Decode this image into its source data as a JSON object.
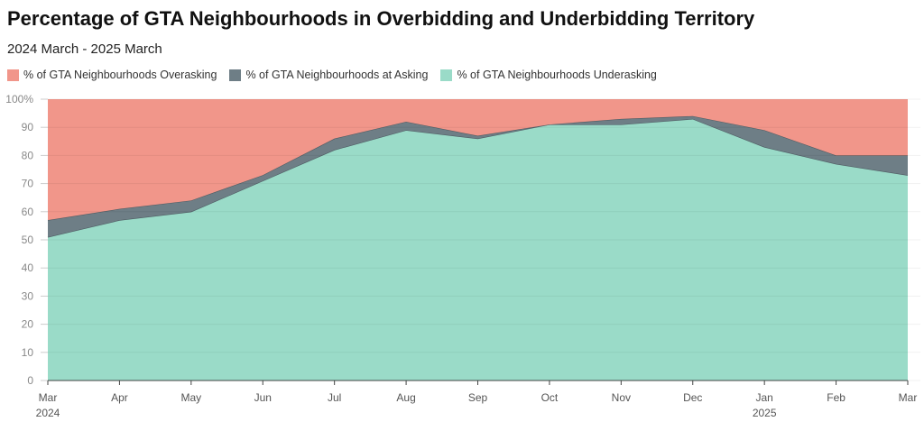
{
  "chart_data": {
    "type": "area",
    "stacked": true,
    "title": "Percentage of GTA Neighbourhoods in Overbidding and Underbidding Territory",
    "subtitle": "2024 March - 2025 March",
    "categories": [
      "Mar",
      "Apr",
      "May",
      "Jun",
      "Jul",
      "Aug",
      "Sep",
      "Oct",
      "Nov",
      "Dec",
      "Jan",
      "Feb",
      "Mar"
    ],
    "year_labels": {
      "0": "2024",
      "10": "2025"
    },
    "series": [
      {
        "name": "% of GTA Neighbourhoods Underasking",
        "color": "#9adbc8",
        "values": [
          51,
          57,
          60,
          71,
          82,
          89,
          86,
          91,
          91,
          93,
          83,
          77,
          73
        ]
      },
      {
        "name": "% of GTA Neighbourhoods at Asking",
        "color": "#6e7e86",
        "values": [
          6,
          4,
          4,
          2,
          4,
          3,
          1,
          0,
          2,
          1,
          6,
          3,
          7
        ]
      },
      {
        "name": "% of GTA Neighbourhoods Overasking",
        "color": "#f1968a",
        "values": [
          43,
          39,
          36,
          27,
          14,
          8,
          13,
          9,
          7,
          6,
          11,
          20,
          20
        ]
      }
    ],
    "legend_order": [
      2,
      1,
      0
    ],
    "yticks": [
      "0",
      "10",
      "20",
      "30",
      "40",
      "50",
      "60",
      "70",
      "80",
      "90",
      "100%"
    ],
    "ylim": [
      0,
      100
    ],
    "legend_position": "top-left",
    "grid": true
  }
}
